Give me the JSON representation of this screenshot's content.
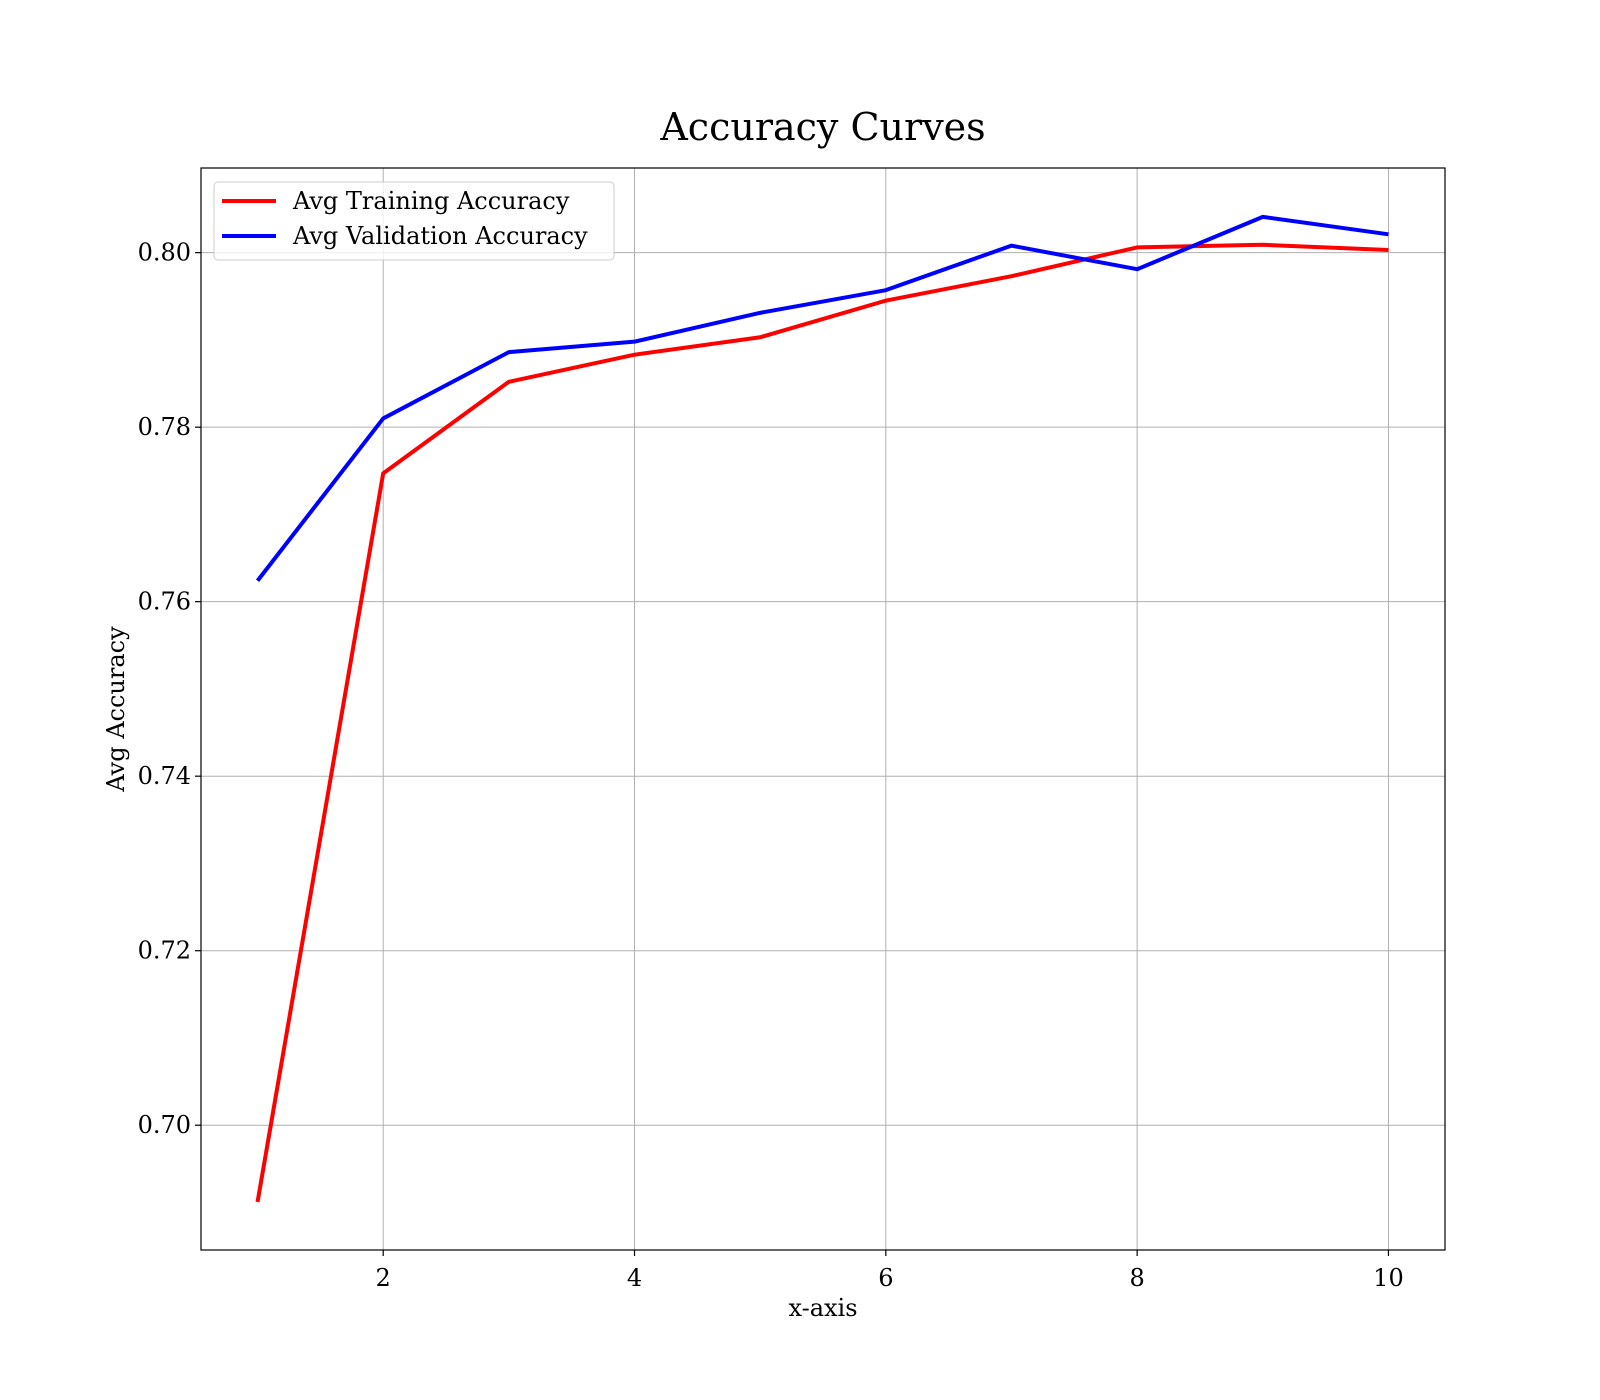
{
  "chart_data": {
    "type": "line",
    "title": "Accuracy Curves",
    "xlabel": "x-axis",
    "ylabel": "Avg Accuracy",
    "x": [
      1,
      2,
      3,
      4,
      5,
      6,
      7,
      8,
      9,
      10
    ],
    "series": [
      {
        "name": "Avg Training Accuracy",
        "color": "#ff0000",
        "values": [
          0.6912,
          0.7747,
          0.7852,
          0.7883,
          0.7903,
          0.7945,
          0.7973,
          0.8006,
          0.8009,
          0.8003
        ]
      },
      {
        "name": "Avg Validation Accuracy",
        "color": "#0000ff",
        "values": [
          0.7624,
          0.781,
          0.7886,
          0.7898,
          0.7931,
          0.7957,
          0.8008,
          0.7981,
          0.8041,
          0.8021
        ]
      }
    ],
    "xticks": [
      2,
      4,
      6,
      8,
      10
    ],
    "yticks": [
      0.7,
      0.72,
      0.74,
      0.76,
      0.78,
      0.8
    ],
    "ytick_labels": [
      "0.70",
      "0.72",
      "0.74",
      "0.76",
      "0.78",
      "0.80"
    ],
    "xlim": [
      0.55,
      10.45
    ],
    "ylim": [
      0.6857,
      0.8097
    ],
    "grid": true,
    "legend_position": "top-left"
  }
}
